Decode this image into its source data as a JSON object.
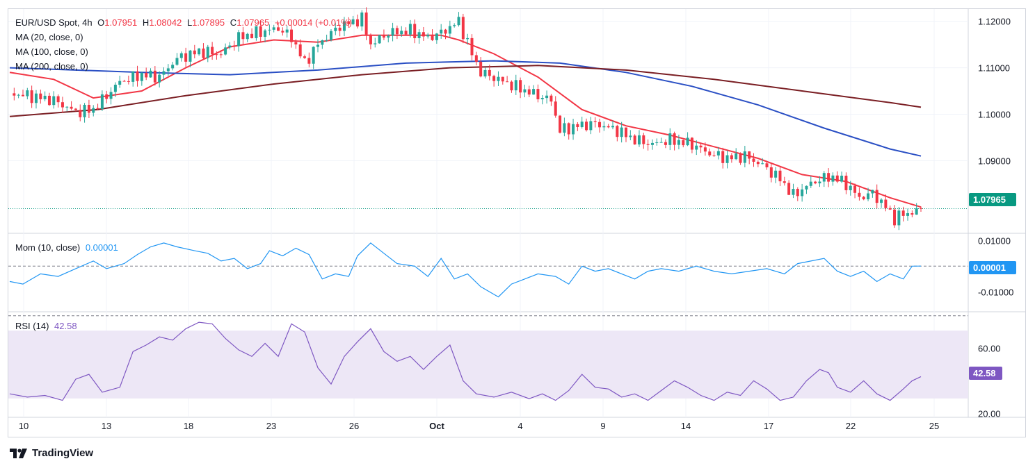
{
  "header": {
    "symbol": "EUR/USD Spot, 4h",
    "o_label": "O",
    "o_value": "1.07951",
    "h_label": "H",
    "h_value": "1.08042",
    "l_label": "L",
    "l_value": "1.07895",
    "c_label": "C",
    "c_value": "1.07965",
    "change": "+0.00014 (+0.01%)"
  },
  "ma_labels": [
    "MA (20, close, 0)",
    "MA (100, close, 0)",
    "MA (200, close, 0)"
  ],
  "mom_panel": {
    "label": "Mom (10, close)",
    "value": "0.00001",
    "badge": "0.00001"
  },
  "rsi_panel": {
    "label": "RSI (14)",
    "value": "42.58",
    "badge": "42.58"
  },
  "price_badge": "1.07965",
  "branding": {
    "name": "TradingView"
  },
  "colors": {
    "up": "#26a69a",
    "down": "#f23645",
    "ma20": "#f23645",
    "ma100": "#2a4fc4",
    "ma200": "#7a1e23",
    "mom": "#2196f3",
    "rsi": "#7e57c2",
    "rsi_band": "#ede7f6",
    "price_line": "#089981"
  },
  "chart_data": [
    {
      "type": "candlestick",
      "title": "EUR/USD Spot, 4h",
      "x_ticks": [
        "10",
        "13",
        "18",
        "23",
        "26",
        "Oct",
        "4",
        "9",
        "14",
        "17",
        "22",
        "25"
      ],
      "y_ticks": [
        "1.12000",
        "1.11000",
        "1.10000",
        "1.09000",
        "1.07965"
      ],
      "ylim": [
        1.0745,
        1.1225
      ],
      "last_close": 1.07965,
      "close_path": [
        [
          0,
          1.1045
        ],
        [
          8,
          1.104
        ],
        [
          20,
          1.103
        ],
        [
          30,
          1.1005
        ],
        [
          38,
          1.101
        ],
        [
          50,
          1.107
        ],
        [
          60,
          1.1085
        ],
        [
          68,
          1.108
        ],
        [
          76,
          1.112
        ],
        [
          86,
          1.1135
        ],
        [
          96,
          1.113
        ],
        [
          104,
          1.1165
        ],
        [
          112,
          1.1175
        ],
        [
          122,
          1.1185
        ],
        [
          128,
          1.1165
        ],
        [
          134,
          1.111
        ],
        [
          140,
          1.115
        ],
        [
          150,
          1.119
        ],
        [
          160,
          1.1205
        ],
        [
          164,
          1.115
        ],
        [
          172,
          1.1175
        ],
        [
          182,
          1.118
        ],
        [
          190,
          1.1165
        ],
        [
          196,
          1.1175
        ],
        [
          204,
          1.12
        ],
        [
          210,
          1.113
        ],
        [
          214,
          1.109
        ],
        [
          222,
          1.1075
        ],
        [
          232,
          1.1055
        ],
        [
          240,
          1.104
        ],
        [
          246,
          1.103
        ],
        [
          250,
          1.0965
        ],
        [
          258,
          1.0975
        ],
        [
          266,
          1.098
        ],
        [
          276,
          1.0965
        ],
        [
          284,
          1.0945
        ],
        [
          292,
          1.0935
        ],
        [
          300,
          1.0945
        ],
        [
          310,
          1.0935
        ],
        [
          318,
          1.0915
        ],
        [
          326,
          1.0905
        ],
        [
          334,
          1.091
        ],
        [
          342,
          1.089
        ],
        [
          350,
          1.086
        ],
        [
          356,
          1.0825
        ],
        [
          362,
          1.0845
        ],
        [
          368,
          1.086
        ],
        [
          374,
          1.0865
        ],
        [
          380,
          1.085
        ],
        [
          386,
          1.082
        ],
        [
          392,
          1.083
        ],
        [
          398,
          1.08
        ],
        [
          402,
          1.0775
        ],
        [
          406,
          1.0785
        ],
        [
          412,
          1.079
        ],
        [
          414,
          1.07965
        ]
      ],
      "series": [
        {
          "name": "MA (20, close, 0)",
          "points": [
            [
              0,
              1.109
            ],
            [
              20,
              1.1075
            ],
            [
              38,
              1.1035
            ],
            [
              60,
              1.105
            ],
            [
              80,
              1.11
            ],
            [
              100,
              1.1145
            ],
            [
              120,
              1.116
            ],
            [
              140,
              1.1155
            ],
            [
              160,
              1.117
            ],
            [
              180,
              1.117
            ],
            [
              196,
              1.117
            ],
            [
              204,
              1.116
            ],
            [
              220,
              1.113
            ],
            [
              240,
              1.108
            ],
            [
              260,
              1.101
            ],
            [
              280,
              1.0975
            ],
            [
              300,
              1.0955
            ],
            [
              320,
              1.093
            ],
            [
              340,
              1.0905
            ],
            [
              360,
              1.087
            ],
            [
              380,
              1.0855
            ],
            [
              400,
              1.082
            ],
            [
              414,
              1.08
            ]
          ]
        },
        {
          "name": "MA (100, close, 0)",
          "points": [
            [
              0,
              1.11
            ],
            [
              30,
              1.1095
            ],
            [
              60,
              1.109
            ],
            [
              100,
              1.1085
            ],
            [
              140,
              1.1095
            ],
            [
              180,
              1.111
            ],
            [
              220,
              1.1115
            ],
            [
              250,
              1.111
            ],
            [
              280,
              1.109
            ],
            [
              310,
              1.106
            ],
            [
              340,
              1.102
            ],
            [
              370,
              1.097
            ],
            [
              400,
              1.0925
            ],
            [
              414,
              1.091
            ]
          ]
        },
        {
          "name": "MA (200, close, 0)",
          "points": [
            [
              0,
              1.0995
            ],
            [
              40,
              1.101
            ],
            [
              80,
              1.104
            ],
            [
              120,
              1.1065
            ],
            [
              160,
              1.1085
            ],
            [
              200,
              1.11
            ],
            [
              240,
              1.1105
            ],
            [
              280,
              1.1095
            ],
            [
              320,
              1.1075
            ],
            [
              360,
              1.105
            ],
            [
              400,
              1.1025
            ],
            [
              414,
              1.1015
            ]
          ]
        }
      ]
    },
    {
      "type": "line",
      "title": "Mom (10, close)",
      "y_ticks": [
        "0.01000",
        "-0.01000"
      ],
      "ylim": [
        -0.0175,
        0.0125
      ],
      "series": [
        {
          "name": "Mom (10, close)",
          "points": [
            [
              0,
              -0.006
            ],
            [
              6,
              -0.007
            ],
            [
              14,
              -0.003
            ],
            [
              22,
              -0.004
            ],
            [
              30,
              -0.001
            ],
            [
              38,
              0.002
            ],
            [
              44,
              -0.001
            ],
            [
              52,
              0.001
            ],
            [
              58,
              0.0045
            ],
            [
              64,
              0.0075
            ],
            [
              70,
              0.009
            ],
            [
              76,
              0.0075
            ],
            [
              84,
              0.006
            ],
            [
              90,
              0.005
            ],
            [
              96,
              0.002
            ],
            [
              102,
              0.003
            ],
            [
              108,
              -0.001
            ],
            [
              114,
              0.001
            ],
            [
              118,
              0.006
            ],
            [
              124,
              0.004
            ],
            [
              130,
              0.007
            ],
            [
              136,
              0.0045
            ],
            [
              142,
              -0.005
            ],
            [
              148,
              -0.003
            ],
            [
              154,
              -0.004
            ],
            [
              158,
              0.004
            ],
            [
              164,
              0.009
            ],
            [
              170,
              0.005
            ],
            [
              176,
              0.001
            ],
            [
              184,
              0.0
            ],
            [
              190,
              -0.004
            ],
            [
              196,
              0.003
            ],
            [
              202,
              -0.005
            ],
            [
              208,
              -0.003
            ],
            [
              214,
              -0.008
            ],
            [
              222,
              -0.012
            ],
            [
              228,
              -0.007
            ],
            [
              234,
              -0.005
            ],
            [
              240,
              -0.003
            ],
            [
              248,
              -0.004
            ],
            [
              254,
              -0.007
            ],
            [
              260,
              0.0
            ],
            [
              266,
              -0.002
            ],
            [
              272,
              -0.001
            ],
            [
              278,
              -0.003
            ],
            [
              284,
              -0.005
            ],
            [
              290,
              -0.002
            ],
            [
              296,
              -0.001
            ],
            [
              304,
              -0.002
            ],
            [
              312,
              0.0
            ],
            [
              320,
              -0.002
            ],
            [
              328,
              -0.003
            ],
            [
              336,
              -0.002
            ],
            [
              344,
              -0.001
            ],
            [
              352,
              -0.003
            ],
            [
              358,
              0.001
            ],
            [
              364,
              0.002
            ],
            [
              370,
              0.003
            ],
            [
              376,
              -0.002
            ],
            [
              382,
              -0.004
            ],
            [
              388,
              -0.002
            ],
            [
              394,
              -0.006
            ],
            [
              400,
              -0.003
            ],
            [
              406,
              -0.005
            ],
            [
              410,
              0.0
            ],
            [
              414,
              1e-05
            ]
          ]
        }
      ]
    },
    {
      "type": "line",
      "title": "RSI (14)",
      "y_ticks": [
        "60.00",
        "20.00"
      ],
      "ylim": [
        18,
        82
      ],
      "band": [
        30,
        70
      ],
      "series": [
        {
          "name": "RSI (14)",
          "points": [
            [
              0,
              32
            ],
            [
              8,
              30
            ],
            [
              16,
              31
            ],
            [
              24,
              28
            ],
            [
              30,
              41
            ],
            [
              36,
              44
            ],
            [
              42,
              33
            ],
            [
              50,
              36
            ],
            [
              56,
              58
            ],
            [
              62,
              62
            ],
            [
              68,
              67
            ],
            [
              74,
              65
            ],
            [
              80,
              72
            ],
            [
              86,
              76
            ],
            [
              92,
              75
            ],
            [
              98,
              66
            ],
            [
              104,
              59
            ],
            [
              110,
              55
            ],
            [
              116,
              63
            ],
            [
              122,
              55
            ],
            [
              128,
              75
            ],
            [
              134,
              70
            ],
            [
              140,
              48
            ],
            [
              146,
              38
            ],
            [
              152,
              55
            ],
            [
              158,
              64
            ],
            [
              164,
              72
            ],
            [
              170,
              58
            ],
            [
              176,
              52
            ],
            [
              182,
              55
            ],
            [
              188,
              47
            ],
            [
              194,
              55
            ],
            [
              200,
              62
            ],
            [
              206,
              40
            ],
            [
              212,
              32
            ],
            [
              220,
              30
            ],
            [
              228,
              33
            ],
            [
              236,
              29
            ],
            [
              242,
              32
            ],
            [
              248,
              28
            ],
            [
              254,
              34
            ],
            [
              260,
              44
            ],
            [
              266,
              36
            ],
            [
              272,
              35
            ],
            [
              278,
              30
            ],
            [
              284,
              32
            ],
            [
              290,
              28
            ],
            [
              296,
              34
            ],
            [
              302,
              40
            ],
            [
              308,
              36
            ],
            [
              314,
              31
            ],
            [
              320,
              28
            ],
            [
              326,
              33
            ],
            [
              332,
              31
            ],
            [
              338,
              40
            ],
            [
              344,
              35
            ],
            [
              350,
              28
            ],
            [
              356,
              30
            ],
            [
              362,
              40
            ],
            [
              368,
              47
            ],
            [
              372,
              45
            ],
            [
              376,
              36
            ],
            [
              382,
              33
            ],
            [
              388,
              40
            ],
            [
              394,
              32
            ],
            [
              400,
              28
            ],
            [
              406,
              35
            ],
            [
              410,
              40
            ],
            [
              414,
              42.58
            ]
          ]
        }
      ]
    }
  ]
}
